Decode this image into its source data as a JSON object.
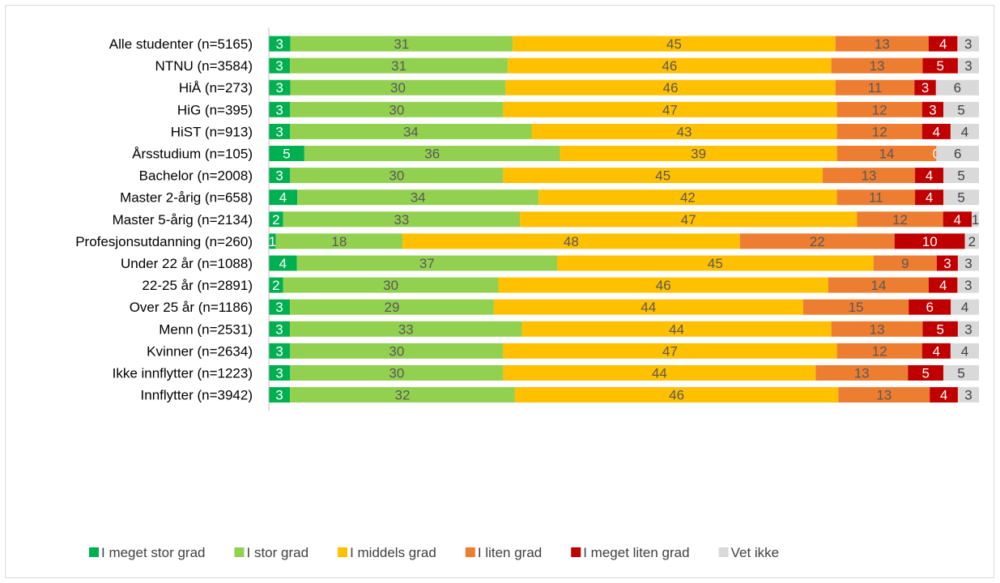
{
  "chart_data": {
    "type": "bar",
    "orientation": "horizontal",
    "stacked": true,
    "percent_scale": true,
    "categories": [
      "Alle studenter (n=5165)",
      "NTNU (n=3584)",
      "HiÅ (n=273)",
      "HiG (n=395)",
      "HiST (n=913)",
      "Årsstudium (n=105)",
      "Bachelor (n=2008)",
      "Master 2-årig (n=658)",
      "Master 5-årig (n=2134)",
      "Profesjonsutdanning (n=260)",
      "Under 22 år (n=1088)",
      "22-25 år (n=2891)",
      "Over 25 år (n=1186)",
      "Menn (n=2531)",
      "Kvinner (n=2634)",
      "Ikke innflytter (n=1223)",
      "Innflytter (n=3942)"
    ],
    "groups": [
      [
        0
      ],
      [
        1,
        2,
        3,
        4
      ],
      [
        5,
        6,
        7,
        8,
        9
      ],
      [
        10,
        11,
        12
      ],
      [
        13,
        14
      ],
      [
        15,
        16
      ]
    ],
    "series": [
      {
        "name": "I meget stor grad",
        "color": "#00b050",
        "label_color": "#ffffff",
        "values": [
          3,
          3,
          3,
          3,
          3,
          5,
          3,
          4,
          2,
          1,
          4,
          2,
          3,
          3,
          3,
          3,
          3
        ]
      },
      {
        "name": "I stor grad",
        "color": "#92d050",
        "label_color": "#595959",
        "values": [
          31,
          31,
          30,
          30,
          34,
          36,
          30,
          34,
          33,
          18,
          37,
          30,
          29,
          33,
          30,
          30,
          32
        ]
      },
      {
        "name": "I middels grad",
        "color": "#ffc000",
        "label_color": "#595959",
        "values": [
          45,
          46,
          46,
          47,
          43,
          39,
          45,
          42,
          47,
          48,
          45,
          46,
          44,
          44,
          47,
          44,
          46
        ]
      },
      {
        "name": "I liten grad",
        "color": "#ed7d31",
        "label_color": "#595959",
        "values": [
          13,
          13,
          11,
          12,
          12,
          14,
          13,
          11,
          12,
          22,
          9,
          14,
          15,
          13,
          12,
          13,
          13
        ]
      },
      {
        "name": "I meget liten grad",
        "color": "#c00000",
        "label_color": "#ffffff",
        "values": [
          4,
          5,
          3,
          3,
          4,
          0,
          4,
          4,
          4,
          10,
          3,
          4,
          6,
          5,
          4,
          5,
          4
        ]
      },
      {
        "name": "Vet ikke",
        "color": "#d9d9d9",
        "label_color": "#404040",
        "values": [
          3,
          3,
          6,
          5,
          4,
          6,
          5,
          5,
          1,
          2,
          3,
          3,
          4,
          3,
          4,
          5,
          3
        ]
      }
    ],
    "legend_position": "bottom",
    "gridlines": false
  }
}
